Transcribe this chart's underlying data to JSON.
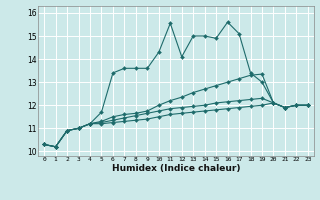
{
  "xlabel": "Humidex (Indice chaleur)",
  "ylabel": "",
  "bg_color": "#cce9e9",
  "grid_color": "#ffffff",
  "line_color": "#1e6b6b",
  "xlim": [
    -0.5,
    23.5
  ],
  "ylim": [
    9.8,
    16.3
  ],
  "xticks": [
    0,
    1,
    2,
    3,
    4,
    5,
    6,
    7,
    8,
    9,
    10,
    11,
    12,
    13,
    14,
    15,
    16,
    17,
    18,
    19,
    20,
    21,
    22,
    23
  ],
  "yticks": [
    10,
    11,
    12,
    13,
    14,
    15,
    16
  ],
  "series": [
    [
      10.3,
      10.2,
      10.9,
      11.0,
      11.2,
      11.7,
      13.4,
      13.6,
      13.6,
      13.6,
      14.3,
      15.55,
      14.1,
      15.0,
      15.0,
      14.9,
      15.6,
      15.1,
      13.4,
      13.0,
      12.1,
      11.9,
      12.0,
      12.0
    ],
    [
      10.3,
      10.2,
      10.9,
      11.0,
      11.2,
      11.3,
      11.5,
      11.6,
      11.65,
      11.75,
      12.0,
      12.2,
      12.35,
      12.55,
      12.7,
      12.85,
      13.0,
      13.15,
      13.3,
      13.35,
      12.1,
      11.9,
      12.0,
      12.0
    ],
    [
      10.3,
      10.2,
      10.9,
      11.0,
      11.2,
      11.25,
      11.35,
      11.45,
      11.55,
      11.65,
      11.75,
      11.85,
      11.9,
      11.95,
      12.0,
      12.1,
      12.15,
      12.2,
      12.25,
      12.3,
      12.1,
      11.9,
      12.0,
      12.0
    ],
    [
      10.3,
      10.2,
      10.9,
      11.0,
      11.2,
      11.2,
      11.25,
      11.3,
      11.35,
      11.4,
      11.5,
      11.6,
      11.65,
      11.7,
      11.75,
      11.8,
      11.85,
      11.9,
      11.95,
      12.0,
      12.1,
      11.9,
      12.0,
      12.0
    ]
  ]
}
